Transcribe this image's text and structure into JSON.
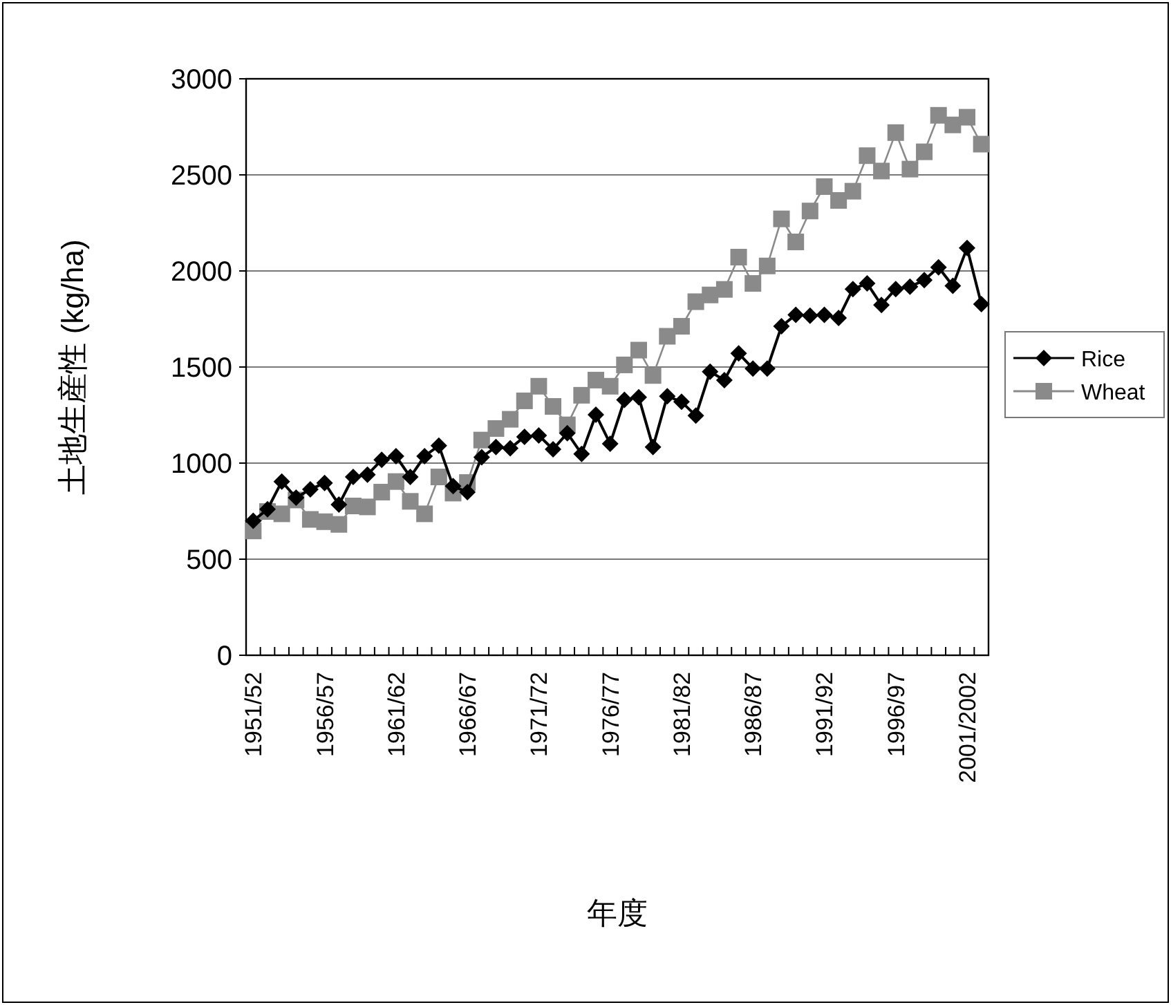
{
  "chart_data": {
    "type": "line",
    "xlabel": "年度",
    "ylabel": "土地生産性 (kg/ha)",
    "categories": [
      "1951/52",
      null,
      null,
      null,
      null,
      "1956/57",
      null,
      null,
      null,
      null,
      "1961/62",
      null,
      null,
      null,
      null,
      "1966/67",
      null,
      null,
      null,
      null,
      "1971/72",
      null,
      null,
      null,
      null,
      "1976/77",
      null,
      null,
      null,
      null,
      "1981/82",
      null,
      null,
      null,
      null,
      "1986/87",
      null,
      null,
      null,
      null,
      "1991/92",
      null,
      null,
      null,
      null,
      "1996/97",
      null,
      null,
      null,
      null,
      "2001/2002",
      null
    ],
    "series": [
      {
        "name": "Rice",
        "color": "#000000",
        "marker": "diamond",
        "values": [
          700,
          760,
          904,
          820,
          863,
          897,
          784,
          928,
          940,
          1017,
          1036,
          928,
          1036,
          1091,
          880,
          849,
          1031,
          1084,
          1077,
          1137,
          1144,
          1072,
          1156,
          1048,
          1252,
          1101,
          1329,
          1343,
          1084,
          1348,
          1319,
          1247,
          1476,
          1432,
          1571,
          1492,
          1492,
          1712,
          1772,
          1767,
          1772,
          1755,
          1906,
          1935,
          1823,
          1906,
          1918,
          1952,
          2019,
          1923,
          2120,
          1827
        ]
      },
      {
        "name": "Wheat",
        "color": "#8a8a8a",
        "marker": "square",
        "values": [
          647,
          748,
          736,
          808,
          707,
          695,
          681,
          777,
          772,
          849,
          904,
          801,
          736,
          928,
          844,
          899,
          1120,
          1180,
          1228,
          1324,
          1400,
          1295,
          1199,
          1353,
          1432,
          1400,
          1511,
          1588,
          1456,
          1660,
          1712,
          1840,
          1875,
          1904,
          2072,
          1935,
          2026,
          2271,
          2151,
          2312,
          2439,
          2367,
          2415,
          2600,
          2520,
          2720,
          2530,
          2620,
          2810,
          2760,
          2800,
          2660
        ]
      }
    ],
    "ylim": [
      0,
      3000
    ],
    "yticks": [
      0,
      500,
      1000,
      1500,
      2000,
      2500,
      3000
    ],
    "grid": "y",
    "legend": "right"
  }
}
